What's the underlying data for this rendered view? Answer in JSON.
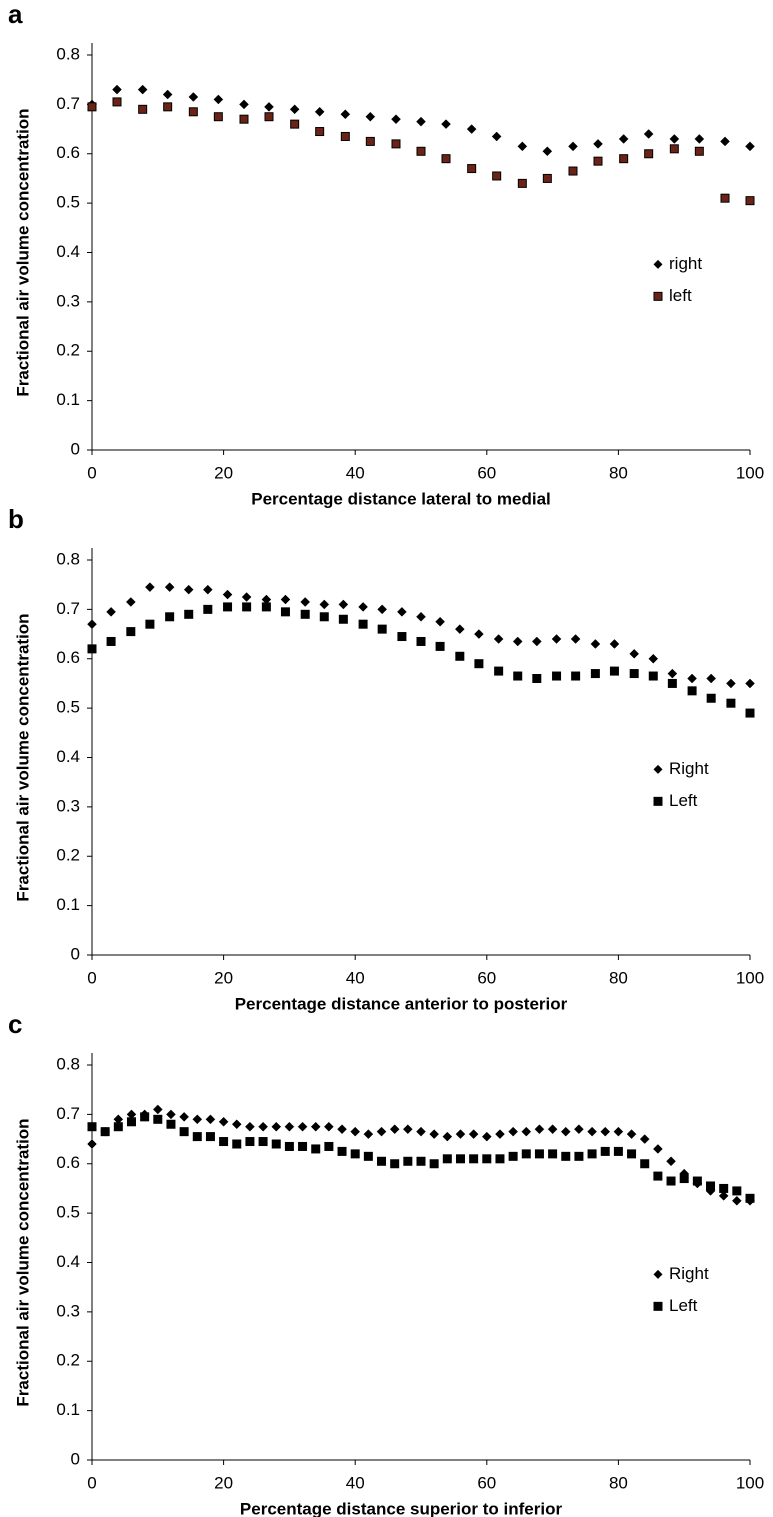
{
  "chart_data": [
    {
      "type": "scatter",
      "panel": "a",
      "xlabel": "Percentage distance lateral to medial",
      "ylabel": "Fractional air volume concentration",
      "xlim": [
        0,
        100
      ],
      "xticks": [
        0,
        20,
        40,
        60,
        80,
        100
      ],
      "ylim": [
        0,
        0.8
      ],
      "yticks": [
        0,
        0.1,
        0.2,
        0.3,
        0.4,
        0.5,
        0.6,
        0.7,
        0.8
      ],
      "legend": "right",
      "series": [
        {
          "name": "right",
          "color": "#000000",
          "marker": "diamond",
          "x": [
            0,
            3.8,
            7.7,
            11.5,
            15.4,
            19.2,
            23.1,
            26.9,
            30.8,
            34.6,
            38.5,
            42.3,
            46.2,
            50,
            53.8,
            57.7,
            61.5,
            65.4,
            69.2,
            73.1,
            76.9,
            80.8,
            84.6,
            88.5,
            92.3,
            96.2,
            100
          ],
          "values": [
            0.7,
            0.73,
            0.73,
            0.72,
            0.715,
            0.71,
            0.7,
            0.695,
            0.69,
            0.685,
            0.68,
            0.675,
            0.67,
            0.665,
            0.66,
            0.65,
            0.635,
            0.615,
            0.605,
            0.615,
            0.62,
            0.63,
            0.64,
            0.63,
            0.63,
            0.625,
            0.615
          ]
        },
        {
          "name": "left",
          "color": "#6b2318",
          "marker": "square",
          "x": [
            0,
            3.8,
            7.7,
            11.5,
            15.4,
            19.2,
            23.1,
            26.9,
            30.8,
            34.6,
            38.5,
            42.3,
            46.2,
            50,
            53.8,
            57.7,
            61.5,
            65.4,
            69.2,
            73.1,
            76.9,
            80.8,
            84.6,
            88.5,
            92.3,
            96.2,
            100
          ],
          "values": [
            0.695,
            0.705,
            0.69,
            0.695,
            0.685,
            0.675,
            0.67,
            0.675,
            0.66,
            0.645,
            0.635,
            0.625,
            0.62,
            0.605,
            0.59,
            0.57,
            0.555,
            0.54,
            0.55,
            0.565,
            0.585,
            0.59,
            0.6,
            0.61,
            0.605,
            0.51,
            0.505
          ]
        }
      ]
    },
    {
      "type": "scatter",
      "panel": "b",
      "xlabel": "Percentage distance anterior to posterior",
      "ylabel": "Fractional air volume concentration",
      "xlim": [
        0,
        100
      ],
      "xticks": [
        0,
        20,
        40,
        60,
        80,
        100
      ],
      "ylim": [
        0,
        0.8
      ],
      "yticks": [
        0,
        0.1,
        0.2,
        0.3,
        0.4,
        0.5,
        0.6,
        0.7,
        0.8
      ],
      "legend": "right",
      "series": [
        {
          "name": "Right",
          "color": "#000000",
          "marker": "diamond",
          "x": [
            0,
            2.9,
            5.9,
            8.8,
            11.8,
            14.7,
            17.6,
            20.6,
            23.5,
            26.5,
            29.4,
            32.4,
            35.3,
            38.2,
            41.2,
            44.1,
            47.1,
            50,
            52.9,
            55.9,
            58.8,
            61.8,
            64.7,
            67.6,
            70.6,
            73.5,
            76.5,
            79.4,
            82.4,
            85.3,
            88.2,
            91.2,
            94.1,
            97.1,
            100
          ],
          "values": [
            0.67,
            0.695,
            0.715,
            0.745,
            0.745,
            0.74,
            0.74,
            0.73,
            0.725,
            0.72,
            0.72,
            0.715,
            0.71,
            0.71,
            0.705,
            0.7,
            0.695,
            0.685,
            0.675,
            0.66,
            0.65,
            0.64,
            0.635,
            0.635,
            0.64,
            0.64,
            0.63,
            0.63,
            0.61,
            0.6,
            0.57,
            0.56,
            0.56,
            0.55,
            0.55
          ]
        },
        {
          "name": "Left",
          "color": "#000000",
          "marker": "square",
          "x": [
            0,
            2.9,
            5.9,
            8.8,
            11.8,
            14.7,
            17.6,
            20.6,
            23.5,
            26.5,
            29.4,
            32.4,
            35.3,
            38.2,
            41.2,
            44.1,
            47.1,
            50,
            52.9,
            55.9,
            58.8,
            61.8,
            64.7,
            67.6,
            70.6,
            73.5,
            76.5,
            79.4,
            82.4,
            85.3,
            88.2,
            91.2,
            94.1,
            97.1,
            100
          ],
          "values": [
            0.62,
            0.635,
            0.655,
            0.67,
            0.685,
            0.69,
            0.7,
            0.705,
            0.705,
            0.705,
            0.695,
            0.69,
            0.685,
            0.68,
            0.67,
            0.66,
            0.645,
            0.635,
            0.625,
            0.605,
            0.59,
            0.575,
            0.565,
            0.56,
            0.565,
            0.565,
            0.57,
            0.575,
            0.57,
            0.565,
            0.55,
            0.535,
            0.52,
            0.51,
            0.49
          ]
        }
      ]
    },
    {
      "type": "scatter",
      "panel": "c",
      "xlabel": "Percentage distance superior to inferior",
      "ylabel": "Fractional air volume concentration",
      "xlim": [
        0,
        100
      ],
      "xticks": [
        0,
        20,
        40,
        60,
        80,
        100
      ],
      "ylim": [
        0,
        0.8
      ],
      "yticks": [
        0,
        0.1,
        0.2,
        0.3,
        0.4,
        0.5,
        0.6,
        0.7,
        0.8
      ],
      "legend": "right",
      "series": [
        {
          "name": "Right",
          "color": "#000000",
          "marker": "diamond",
          "x": [
            0,
            2,
            4,
            6,
            8,
            10,
            12,
            14,
            16,
            18,
            20,
            22,
            24,
            26,
            28,
            30,
            32,
            34,
            36,
            38,
            40,
            42,
            44,
            46,
            48,
            50,
            52,
            54,
            56,
            58,
            60,
            62,
            64,
            66,
            68,
            70,
            72,
            74,
            76,
            78,
            80,
            82,
            84,
            86,
            88,
            90,
            92,
            94,
            96,
            98,
            100
          ],
          "values": [
            0.64,
            0.665,
            0.69,
            0.7,
            0.7,
            0.71,
            0.7,
            0.695,
            0.69,
            0.69,
            0.685,
            0.68,
            0.675,
            0.675,
            0.675,
            0.675,
            0.675,
            0.675,
            0.675,
            0.67,
            0.665,
            0.66,
            0.665,
            0.67,
            0.67,
            0.665,
            0.66,
            0.655,
            0.66,
            0.66,
            0.655,
            0.66,
            0.665,
            0.665,
            0.67,
            0.67,
            0.665,
            0.67,
            0.665,
            0.665,
            0.665,
            0.66,
            0.65,
            0.63,
            0.605,
            0.58,
            0.56,
            0.545,
            0.535,
            0.525,
            0.525
          ]
        },
        {
          "name": "Left",
          "color": "#000000",
          "marker": "square",
          "x": [
            0,
            2,
            4,
            6,
            8,
            10,
            12,
            14,
            16,
            18,
            20,
            22,
            24,
            26,
            28,
            30,
            32,
            34,
            36,
            38,
            40,
            42,
            44,
            46,
            48,
            50,
            52,
            54,
            56,
            58,
            60,
            62,
            64,
            66,
            68,
            70,
            72,
            74,
            76,
            78,
            80,
            82,
            84,
            86,
            88,
            90,
            92,
            94,
            96,
            98,
            100
          ],
          "values": [
            0.675,
            0.665,
            0.675,
            0.685,
            0.695,
            0.69,
            0.68,
            0.665,
            0.655,
            0.655,
            0.645,
            0.64,
            0.645,
            0.645,
            0.64,
            0.635,
            0.635,
            0.63,
            0.635,
            0.625,
            0.62,
            0.615,
            0.605,
            0.6,
            0.605,
            0.605,
            0.6,
            0.61,
            0.61,
            0.61,
            0.61,
            0.61,
            0.615,
            0.62,
            0.62,
            0.62,
            0.615,
            0.615,
            0.62,
            0.625,
            0.625,
            0.62,
            0.6,
            0.575,
            0.565,
            0.57,
            0.565,
            0.555,
            0.55,
            0.545,
            0.53
          ]
        }
      ]
    }
  ]
}
